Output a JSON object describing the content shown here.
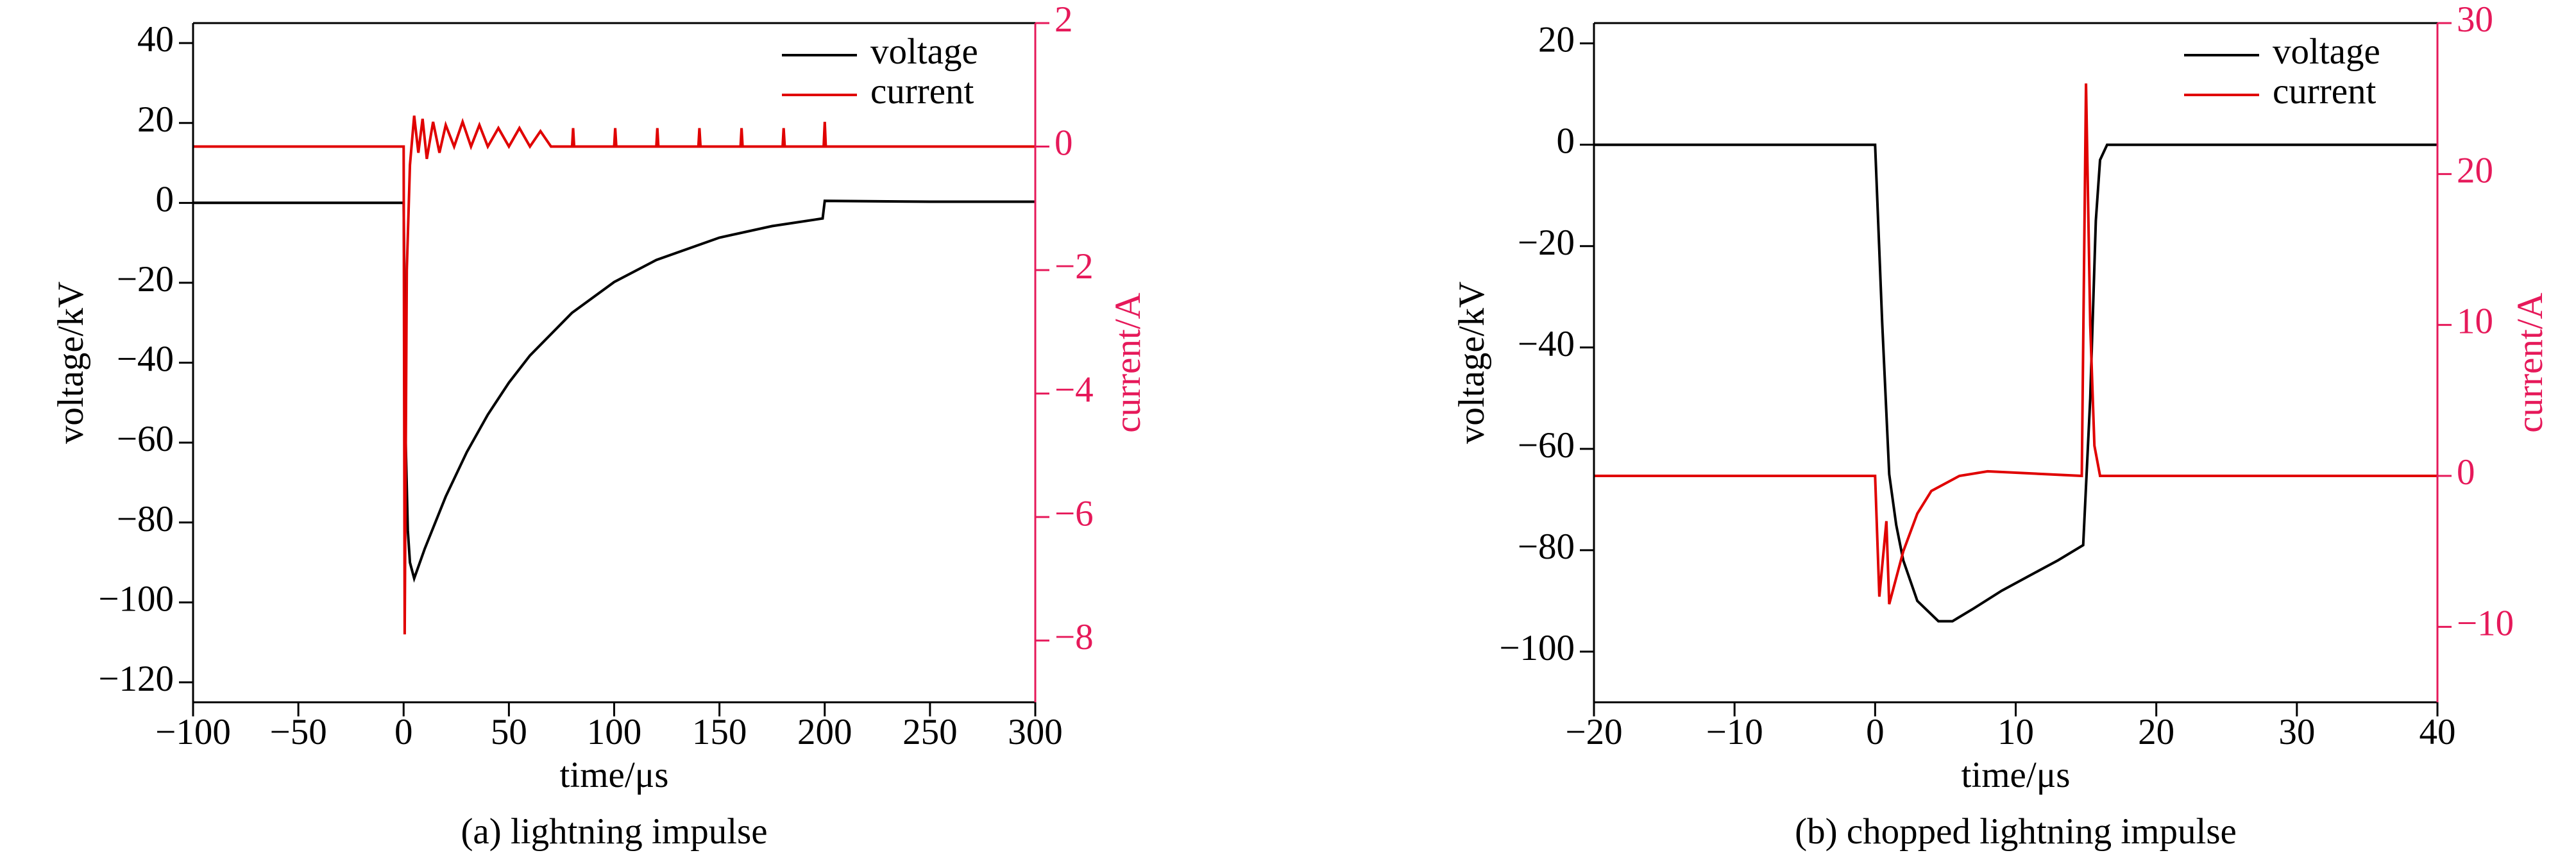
{
  "chart_data": [
    {
      "type": "line",
      "caption": "(a) lightning impulse",
      "xlabel": "time/μs",
      "ylabel": "voltage/kV",
      "y2label": "current/A",
      "xlim": [
        -100,
        300
      ],
      "xticks": [
        {
          "value": -100,
          "label": "−100"
        },
        {
          "value": -50,
          "label": "−50"
        },
        0,
        50,
        100,
        150,
        200,
        250,
        300
      ],
      "ylim": [
        -125,
        45
      ],
      "yticks": [
        {
          "value": -120,
          "label": "−120"
        },
        {
          "value": -100,
          "label": "−100"
        },
        {
          "value": -80,
          "label": "−80"
        },
        {
          "value": -60,
          "label": "−60"
        },
        {
          "value": -40,
          "label": "−40"
        },
        {
          "value": -20,
          "label": "−20"
        },
        0,
        20,
        40
      ],
      "y2lim": [
        -9,
        2
      ],
      "y2ticks": [
        {
          "value": -8,
          "label": "−8"
        },
        {
          "value": -6,
          "label": "−6"
        },
        {
          "value": -4,
          "label": "−4"
        },
        {
          "value": -2,
          "label": "−2"
        },
        0,
        2
      ],
      "y2color": "#e6195a",
      "legend": "upper right",
      "series": [
        {
          "name": "voltage",
          "color": "#000000",
          "x": [
            -100,
            -1,
            0,
            1,
            2,
            3,
            5,
            10,
            20,
            30,
            40,
            50,
            60,
            80,
            100,
            120,
            150,
            175,
            199,
            200,
            250,
            300
          ],
          "values": [
            0,
            0,
            0,
            -60,
            -82,
            -90,
            -94,
            -86.6,
            -73.5,
            -62.4,
            -53,
            -45,
            -38.2,
            -27.5,
            -19.8,
            -14.3,
            -8.7,
            -5.8,
            -3.9,
            0.5,
            0.3,
            0.3
          ]
        },
        {
          "name": "current",
          "color": "#e00000",
          "axis": "y2",
          "x": [
            -100,
            0,
            0.5,
            1.5,
            3,
            5,
            7,
            9,
            11,
            14,
            17,
            20,
            24,
            28,
            32,
            36,
            40,
            45,
            50,
            55,
            60,
            65,
            70,
            80,
            80.5,
            81,
            100,
            100.5,
            101,
            120,
            120.5,
            121,
            140,
            140.5,
            141,
            160,
            160.5,
            161,
            180,
            180.5,
            181,
            199.5,
            200,
            200.5,
            300
          ],
          "values": [
            0,
            0,
            -7.9,
            -2,
            -0.3,
            0.5,
            -0.1,
            0.45,
            -0.2,
            0.4,
            -0.1,
            0.35,
            0,
            0.4,
            0,
            0.35,
            0,
            0.3,
            0,
            0.3,
            0,
            0.25,
            0,
            0,
            0.3,
            0,
            0,
            0.3,
            0,
            0,
            0.3,
            0,
            0,
            0.3,
            0,
            0,
            0.3,
            0,
            0,
            0.3,
            0,
            0,
            0.4,
            0,
            0
          ]
        }
      ]
    },
    {
      "type": "line",
      "caption": "(b) chopped lightning impulse",
      "xlabel": "time/μs",
      "ylabel": "voltage/kV",
      "y2label": "current/A",
      "xlim": [
        -20,
        40
      ],
      "xticks": [
        {
          "value": -20,
          "label": "−20"
        },
        {
          "value": -10,
          "label": "−10"
        },
        0,
        10,
        20,
        30,
        40
      ],
      "ylim": [
        -110,
        24
      ],
      "yticks": [
        {
          "value": -100,
          "label": "−100"
        },
        {
          "value": -80,
          "label": "−80"
        },
        {
          "value": -60,
          "label": "−60"
        },
        {
          "value": -40,
          "label": "−40"
        },
        {
          "value": -20,
          "label": "−20"
        },
        0,
        20
      ],
      "y2lim": [
        -15,
        30
      ],
      "y2ticks": [
        {
          "value": -10,
          "label": "−10"
        },
        0,
        10,
        20,
        30
      ],
      "y2color": "#e6195a",
      "legend": "upper right",
      "series": [
        {
          "name": "voltage",
          "color": "#000000",
          "x": [
            -20,
            0,
            0.5,
            1,
            1.5,
            2,
            3,
            4.5,
            5.5,
            7,
            9,
            11,
            13,
            14.8,
            15.3,
            15.7,
            16,
            16.5,
            40
          ],
          "values": [
            0,
            0,
            -35,
            -65,
            -75,
            -82,
            -90,
            -94,
            -94,
            -91.5,
            -88,
            -85,
            -82,
            -79,
            -50,
            -15,
            -3,
            0,
            0
          ]
        },
        {
          "name": "current",
          "color": "#e00000",
          "axis": "y2",
          "x": [
            -20,
            0,
            0.3,
            0.8,
            1,
            2,
            3,
            4,
            6,
            8,
            14.7,
            15,
            15.3,
            15.6,
            16,
            40
          ],
          "values": [
            0,
            0,
            -8,
            -3,
            -8.5,
            -5,
            -2.5,
            -1,
            0,
            0.3,
            0,
            26,
            10,
            2,
            0,
            0
          ]
        }
      ]
    }
  ]
}
